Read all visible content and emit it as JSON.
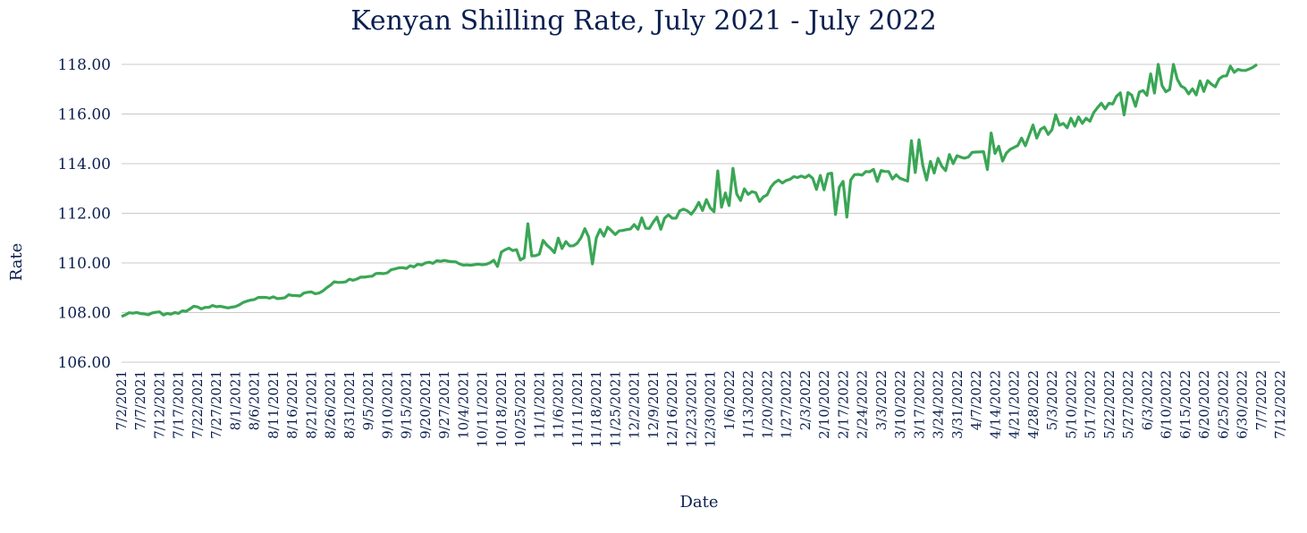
{
  "chart_data": {
    "type": "line",
    "title": "Kenyan Shilling Rate, July 2021 - July 2022",
    "xlabel": "Date",
    "ylabel": "Rate",
    "ylim": [
      106,
      118
    ],
    "yticks": [
      "106.00",
      "108.00",
      "110.00",
      "112.00",
      "114.00",
      "116.00",
      "118.00"
    ],
    "grid": "horizontal",
    "x_start": "7/2/2021",
    "x_end": "7/12/2022",
    "x_tick_labels": [
      "7/2/2021",
      "7/7/2021",
      "7/12/2021",
      "7/17/2021",
      "7/22/2021",
      "7/27/2021",
      "8/1/2021",
      "8/6/2021",
      "8/11/2021",
      "8/16/2021",
      "8/21/2021",
      "8/26/2021",
      "8/31/2021",
      "9/5/2021",
      "9/10/2021",
      "9/15/2021",
      "9/20/2021",
      "9/27/2021",
      "10/4/2021",
      "10/11/2021",
      "10/18/2021",
      "10/25/2021",
      "11/1/2021",
      "11/6/2021",
      "11/11/2021",
      "11/18/2021",
      "11/25/2021",
      "12/2/2021",
      "12/9/2021",
      "12/16/2021",
      "12/23/2021",
      "12/30/2021",
      "1/6/2022",
      "1/13/2022",
      "1/20/2022",
      "1/27/2022",
      "2/3/2022",
      "2/10/2022",
      "2/17/2022",
      "2/24/2022",
      "3/3/2022",
      "3/10/2022",
      "3/17/2022",
      "3/24/2022",
      "3/31/2022",
      "4/7/2022",
      "4/14/2022",
      "4/21/2022",
      "4/28/2022",
      "5/3/2022",
      "5/10/2022",
      "5/17/2022",
      "5/22/2022",
      "5/27/2022",
      "6/3/2022",
      "6/10/2022",
      "6/15/2022",
      "6/20/2022",
      "6/25/2022",
      "6/30/2022",
      "7/7/2022",
      "7/12/2022"
    ],
    "series": [
      {
        "values": [
          107.9,
          108.0,
          107.9,
          108.0,
          107.9,
          108.0,
          108.2,
          108.2,
          108.25,
          108.2,
          108.3,
          108.5,
          108.6,
          108.6,
          108.65,
          108.7,
          108.8,
          108.85,
          109.2,
          109.3,
          109.4,
          109.5,
          109.6,
          109.7,
          109.8,
          109.9,
          110.0,
          110.05,
          110.05,
          109.9,
          109.9,
          110.0,
          110.2,
          110.3,
          110.5,
          110.5,
          110.6,
          110.8,
          110.9,
          111.0,
          111.2,
          111.1,
          111.3,
          111.2,
          111.5,
          111.5,
          111.6,
          111.8,
          112.0,
          112.2,
          112.4,
          112.5,
          112.6,
          112.7,
          112.8,
          113.0,
          113.1,
          113.2,
          113.3,
          113.2,
          113.3,
          113.3,
          113.4,
          113.5,
          113.6,
          113.7,
          113.6,
          113.7,
          113.8,
          113.9,
          114.0,
          114.0,
          114.1,
          114.2,
          114.3,
          114.5,
          114.8,
          115.1,
          115.4,
          115.6,
          115.8,
          116.0,
          116.1,
          116.2,
          116.3,
          116.5,
          116.6,
          116.7,
          116.8,
          116.9,
          117.0,
          117.1,
          117.3,
          117.5,
          117.7,
          117.8,
          118.0
        ]
      }
    ]
  }
}
